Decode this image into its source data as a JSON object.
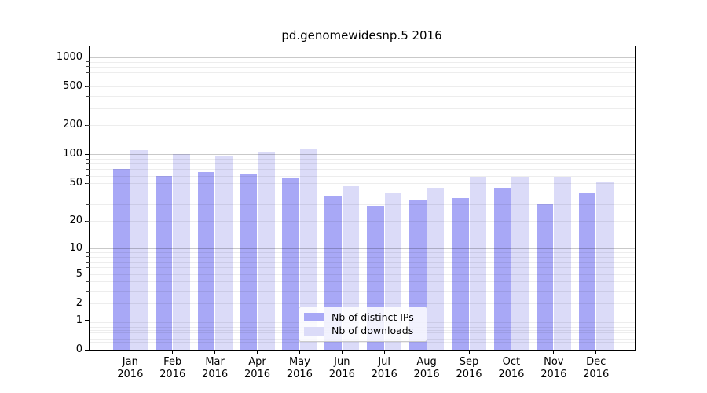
{
  "chart_data": {
    "type": "bar",
    "title": "pd.genomewidesnp.5 2016",
    "xlabel": "",
    "ylabel": "",
    "x_axis": {
      "months": [
        "Jan",
        "Feb",
        "Mar",
        "Apr",
        "May",
        "Jun",
        "Jul",
        "Aug",
        "Sep",
        "Oct",
        "Nov",
        "Dec"
      ],
      "year": "2016"
    },
    "y_axis": {
      "scale": "log10(1+x)",
      "ticks": [
        0,
        1,
        2,
        5,
        10,
        20,
        50,
        100,
        200,
        500,
        1000
      ],
      "major_gridlines": [
        1,
        10,
        100,
        1000
      ],
      "ylim": [
        0,
        1320
      ],
      "grid": "on"
    },
    "series": [
      {
        "name": "Nb of distinct IPs",
        "color": "#a8a8f6",
        "values": [
          71,
          60,
          66,
          63,
          57,
          37,
          29,
          33,
          35,
          45,
          30,
          39
        ]
      },
      {
        "name": "Nb of downloads",
        "color": "#dbdbf8",
        "values": [
          111,
          101,
          97,
          107,
          112,
          47,
          40,
          45,
          59,
          58,
          58,
          51
        ]
      }
    ],
    "legend_position": "lower center",
    "background_color": "#ffffff"
  }
}
